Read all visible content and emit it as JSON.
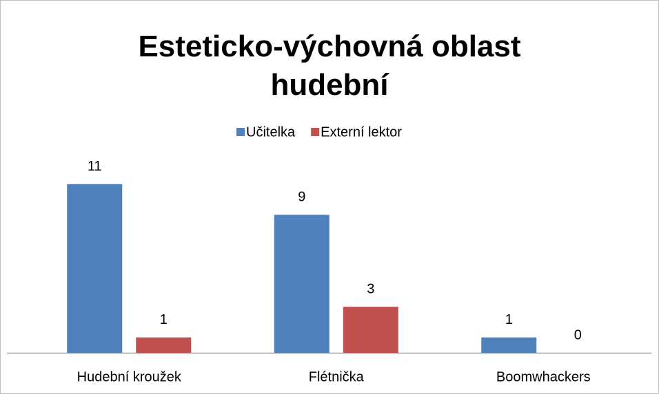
{
  "chart_data": {
    "type": "bar",
    "title": "Esteticko-výchovná oblast\nhudební",
    "categories": [
      "Hudební kroužek",
      "Flétnička",
      "Boomwhackers"
    ],
    "series": [
      {
        "name": "Učitelka",
        "color": "#4f81bd",
        "values": [
          11,
          9,
          1
        ]
      },
      {
        "name": "Externí lektor",
        "color": "#c0504d",
        "values": [
          1,
          3,
          0
        ]
      }
    ],
    "ylim": [
      0,
      12
    ],
    "legend": "top"
  }
}
